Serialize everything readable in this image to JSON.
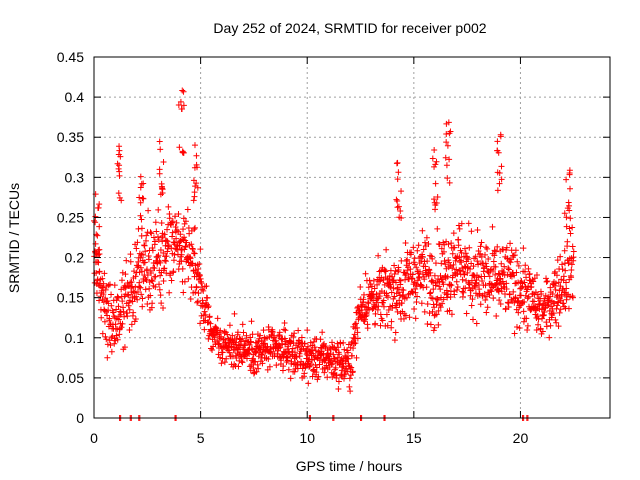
{
  "chart_data": {
    "type": "scatter",
    "title": "Day 252 of 2024, SRMTID for receiver p002",
    "xlabel": "GPS time / hours",
    "ylabel": "SRMTID / TECUs",
    "xlim": [
      0,
      24.2
    ],
    "ylim": [
      0,
      0.45
    ],
    "xticks": [
      0,
      5,
      10,
      15,
      20
    ],
    "yticks": [
      0,
      0.05,
      0.1,
      0.15,
      0.2,
      0.25,
      0.3,
      0.35,
      0.4,
      0.45
    ],
    "xtick_labels": [
      "0",
      "5",
      "10",
      "15",
      "20"
    ],
    "ytick_labels": [
      "0",
      "0.05",
      "0.1",
      "0.15",
      "0.2",
      "0.25",
      "0.3",
      "0.35",
      "0.4",
      "0.45"
    ],
    "grid": true,
    "marker": "+",
    "series": [
      {
        "name": "SRMTID",
        "color": "#ff0000",
        "trend": {
          "x": [
            0.0,
            0.3,
            0.6,
            1.0,
            1.5,
            2.0,
            2.5,
            3.0,
            3.5,
            4.0,
            4.5,
            5.0,
            5.5,
            6.0,
            6.5,
            7.0,
            7.5,
            8.0,
            8.5,
            9.0,
            9.5,
            10.0,
            10.5,
            11.0,
            11.5,
            12.0,
            12.5,
            13.0,
            13.5,
            14.0,
            14.5,
            15.0,
            15.5,
            16.0,
            16.5,
            17.0,
            17.5,
            18.0,
            18.5,
            19.0,
            19.5,
            20.0,
            20.5,
            21.0,
            21.5,
            22.0,
            22.5
          ],
          "y": [
            0.21,
            0.16,
            0.13,
            0.12,
            0.15,
            0.17,
            0.19,
            0.2,
            0.21,
            0.22,
            0.2,
            0.16,
            0.11,
            0.09,
            0.09,
            0.09,
            0.08,
            0.085,
            0.085,
            0.085,
            0.08,
            0.075,
            0.075,
            0.075,
            0.07,
            0.065,
            0.14,
            0.15,
            0.15,
            0.16,
            0.16,
            0.18,
            0.18,
            0.17,
            0.18,
            0.2,
            0.18,
            0.18,
            0.17,
            0.17,
            0.17,
            0.16,
            0.15,
            0.13,
            0.15,
            0.17,
            0.2
          ]
        },
        "spread": {
          "x": [
            0.0,
            1.0,
            2.0,
            3.0,
            4.0,
            5.0,
            5.5,
            8.0,
            12.0,
            12.5,
            14.0,
            16.0,
            18.0,
            20.0,
            21.0,
            22.0,
            22.5
          ],
          "y": [
            0.06,
            0.06,
            0.06,
            0.07,
            0.08,
            0.05,
            0.035,
            0.035,
            0.035,
            0.04,
            0.06,
            0.07,
            0.07,
            0.06,
            0.04,
            0.06,
            0.07
          ]
        },
        "peaks": [
          {
            "x": 0.15,
            "y": 0.28
          },
          {
            "x": 1.2,
            "y": 0.34
          },
          {
            "x": 2.2,
            "y": 0.31
          },
          {
            "x": 3.2,
            "y": 0.35
          },
          {
            "x": 4.1,
            "y": 0.41
          },
          {
            "x": 4.8,
            "y": 0.35
          },
          {
            "x": 14.3,
            "y": 0.32
          },
          {
            "x": 16.0,
            "y": 0.34
          },
          {
            "x": 16.6,
            "y": 0.37
          },
          {
            "x": 19.0,
            "y": 0.36
          },
          {
            "x": 22.2,
            "y": 0.31
          }
        ],
        "zero_values": [
          1.2,
          1.7,
          2.1,
          3.8,
          10.1,
          11.2,
          12.5,
          13.6,
          20.1,
          20.3
        ]
      }
    ]
  }
}
